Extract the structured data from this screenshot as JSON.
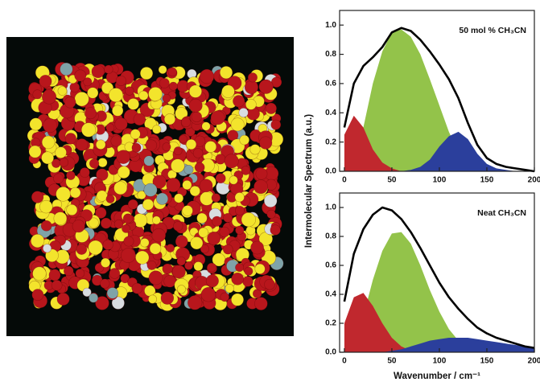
{
  "chart_data": [
    {
      "type": "area",
      "annotation": "50 mol % CH₃CN",
      "ylabel": "Intermolecular Spectrum (a.u.)",
      "x": [
        0,
        10,
        20,
        30,
        40,
        50,
        60,
        70,
        80,
        90,
        100,
        110,
        120,
        130,
        140,
        150,
        160,
        170,
        180,
        190,
        200
      ],
      "xlim": [
        -5,
        200
      ],
      "ylim": [
        0,
        1.1
      ],
      "xticks": [
        0,
        50,
        100,
        150,
        200
      ],
      "yticks": [
        {
          "value": 0,
          "label": "0.0"
        },
        {
          "value": 0.2,
          "label": "0.2"
        },
        {
          "value": 0.4,
          "label": "0.4"
        },
        {
          "value": 0.6,
          "label": "0.6"
        },
        {
          "value": 0.8,
          "label": "0.8"
        },
        {
          "value": 1.0,
          "label": "1.0"
        }
      ],
      "series": [
        {
          "color": "#93c34a",
          "kind": "area",
          "values": [
            0,
            0.05,
            0.3,
            0.6,
            0.82,
            0.95,
            0.97,
            0.92,
            0.8,
            0.63,
            0.45,
            0.27,
            0.13,
            0.05,
            0.01,
            0,
            0,
            0,
            0,
            0,
            0
          ]
        },
        {
          "color": "#c0282e",
          "kind": "area",
          "values": [
            0.25,
            0.38,
            0.3,
            0.15,
            0.06,
            0.02,
            0,
            0,
            0,
            0,
            0,
            0,
            0,
            0,
            0,
            0,
            0,
            0,
            0,
            0,
            0
          ]
        },
        {
          "color": "#2b3f9c",
          "kind": "area",
          "values": [
            0,
            0,
            0,
            0,
            0,
            0,
            0,
            0.01,
            0.03,
            0.08,
            0.17,
            0.24,
            0.27,
            0.22,
            0.12,
            0.05,
            0.02,
            0.01,
            0,
            0,
            0
          ]
        },
        {
          "color": "#000000",
          "kind": "line",
          "values": [
            0.3,
            0.6,
            0.72,
            0.78,
            0.85,
            0.95,
            0.98,
            0.96,
            0.9,
            0.82,
            0.73,
            0.63,
            0.5,
            0.33,
            0.18,
            0.09,
            0.05,
            0.03,
            0.02,
            0.01,
            0
          ]
        }
      ]
    },
    {
      "type": "area",
      "annotation": "Neat  CH₃CN",
      "xlabel": "Wavenumber / cm⁻¹",
      "x": [
        0,
        10,
        20,
        30,
        40,
        50,
        60,
        70,
        80,
        90,
        100,
        110,
        120,
        130,
        140,
        150,
        160,
        170,
        180,
        190,
        200
      ],
      "xlim": [
        -5,
        200
      ],
      "ylim": [
        0,
        1.1
      ],
      "xticks": [
        0,
        50,
        100,
        150,
        200
      ],
      "yticks": [
        {
          "value": 0,
          "label": "0.0"
        },
        {
          "value": 0.2,
          "label": "0.2"
        },
        {
          "value": 0.4,
          "label": "0.4"
        },
        {
          "value": 0.6,
          "label": "0.6"
        },
        {
          "value": 0.8,
          "label": "0.8"
        },
        {
          "value": 1.0,
          "label": "1.0"
        }
      ],
      "series": [
        {
          "color": "#93c34a",
          "kind": "area",
          "values": [
            0,
            0.05,
            0.25,
            0.5,
            0.7,
            0.82,
            0.83,
            0.75,
            0.6,
            0.43,
            0.28,
            0.16,
            0.08,
            0.03,
            0.01,
            0,
            0,
            0,
            0,
            0,
            0
          ]
        },
        {
          "color": "#c0282e",
          "kind": "area",
          "values": [
            0.2,
            0.38,
            0.41,
            0.32,
            0.2,
            0.1,
            0.04,
            0.01,
            0,
            0,
            0,
            0,
            0,
            0,
            0,
            0,
            0,
            0,
            0,
            0,
            0
          ]
        },
        {
          "color": "#2b3f9c",
          "kind": "area",
          "values": [
            0,
            0,
            0,
            0,
            0,
            0.01,
            0.02,
            0.04,
            0.06,
            0.08,
            0.09,
            0.1,
            0.1,
            0.1,
            0.09,
            0.08,
            0.07,
            0.06,
            0.05,
            0.04,
            0.03
          ]
        },
        {
          "color": "#000000",
          "kind": "line",
          "values": [
            0.35,
            0.68,
            0.85,
            0.95,
            1.0,
            0.98,
            0.92,
            0.83,
            0.72,
            0.6,
            0.48,
            0.38,
            0.3,
            0.23,
            0.17,
            0.13,
            0.1,
            0.08,
            0.06,
            0.04,
            0.03
          ]
        }
      ]
    }
  ]
}
